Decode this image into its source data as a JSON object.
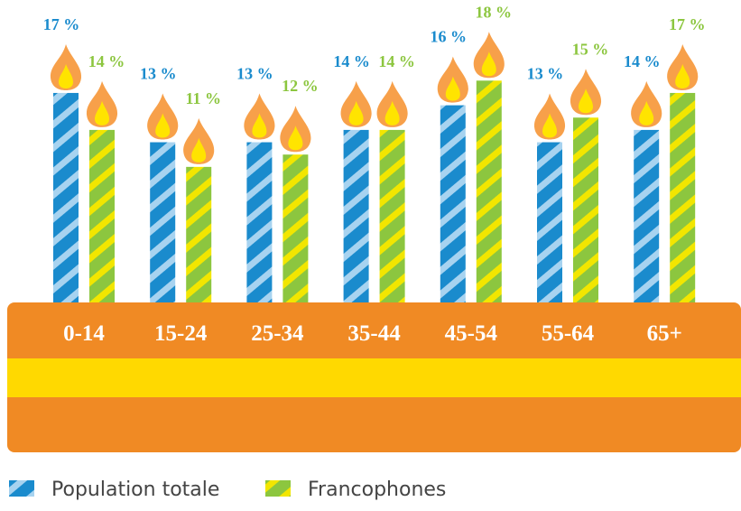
{
  "chart_data": {
    "type": "candle",
    "categories": [
      "0-14",
      "15-24",
      "25-34",
      "35-44",
      "45-54",
      "55-64",
      "65+"
    ],
    "series": [
      {
        "name": "Population totale",
        "color": "#1a8bcd",
        "stripe_color": "#a7d3f0",
        "values": [
          17,
          13,
          13,
          14,
          16,
          13,
          14
        ],
        "value_labels": [
          "17 %",
          "13 %",
          "13 %",
          "14 %",
          "16 %",
          "13 %",
          "14 %"
        ]
      },
      {
        "name": "Francophones",
        "color": "#8cc63f",
        "stripe_color": "#f2e600",
        "values": [
          14,
          11,
          12,
          14,
          18,
          15,
          17
        ],
        "value_labels": [
          "14 %",
          "11 %",
          "12 %",
          "14 %",
          "18 %",
          "15 %",
          "17 %"
        ]
      }
    ]
  }
}
